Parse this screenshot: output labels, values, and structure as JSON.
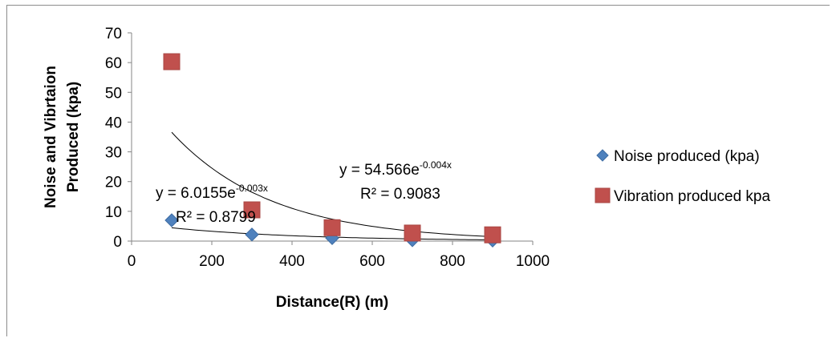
{
  "chart_data": {
    "type": "scatter",
    "title": "",
    "xlabel": "Distance(R) (m)",
    "ylabel": [
      "Noise and Vibrtaion",
      "Produced (kpa)"
    ],
    "xlim": [
      0,
      1000
    ],
    "ylim": [
      0,
      70
    ],
    "xticks": [
      0,
      200,
      400,
      600,
      800,
      1000
    ],
    "yticks": [
      0,
      10,
      20,
      30,
      40,
      50,
      60,
      70
    ],
    "grid": false,
    "legend_position": "right",
    "series": [
      {
        "name": "Noise produced (kpa)",
        "marker": "diamond",
        "color": "#4f81bd",
        "x": [
          100,
          300,
          500,
          700,
          900
        ],
        "y": [
          7,
          2.2,
          1,
          0.3,
          0.2
        ],
        "trendline": {
          "type": "exponential",
          "a": 6.0155,
          "b": -0.003
        },
        "equation": {
          "text": "y = 6.0155e",
          "exponent": "-0.003x"
        },
        "r_squared": "R² = 0.8799"
      },
      {
        "name": "Vibration produced kpa",
        "marker": "square",
        "color": "#c0504d",
        "x": [
          100,
          300,
          500,
          700,
          900
        ],
        "y": [
          60.3,
          10.5,
          4.5,
          2.7,
          2.1
        ],
        "trendline": {
          "type": "exponential",
          "a": 54.566,
          "b": -0.004
        },
        "equation": {
          "text": "y = 54.566e",
          "exponent": "-0.004x"
        },
        "r_squared": "R² = 0.9083"
      }
    ]
  }
}
